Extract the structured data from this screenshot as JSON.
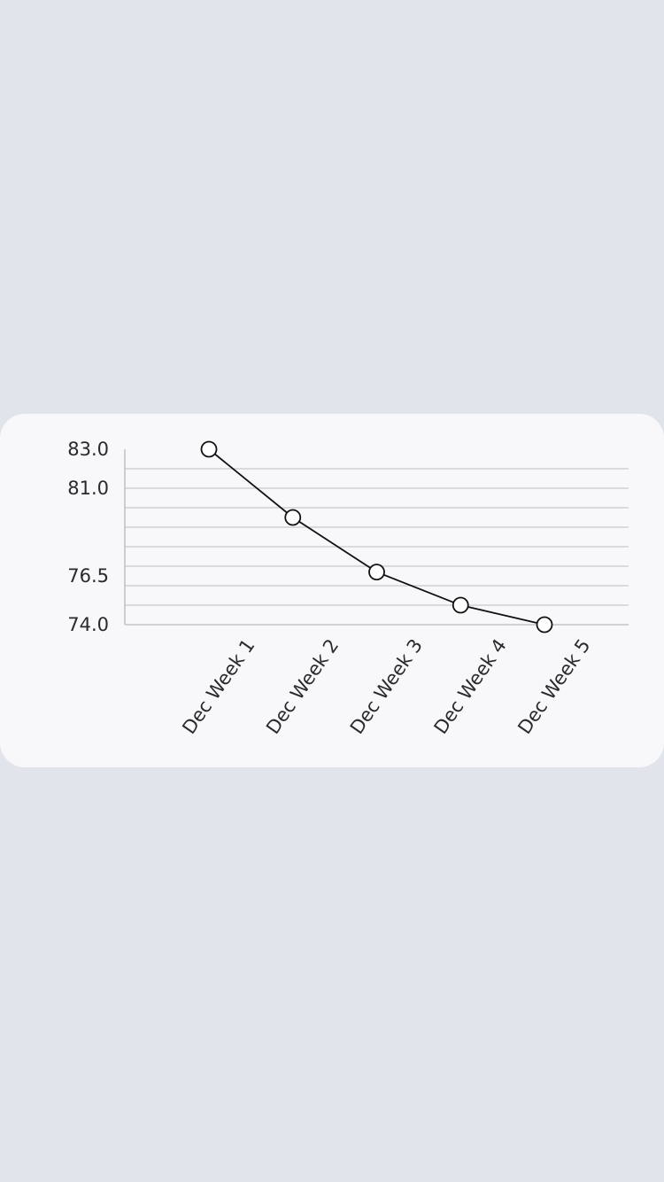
{
  "chart_data": {
    "type": "line",
    "categories": [
      "Dec Week 1",
      "Dec Week 2",
      "Dec Week 3",
      "Dec Week 4",
      "Dec Week 5"
    ],
    "series": [
      {
        "values": [
          83.0,
          79.5,
          76.7,
          75.0,
          74.0
        ]
      }
    ],
    "yticks": [
      "83.0",
      "81.0",
      "76.5",
      "74.0"
    ],
    "ylim": [
      74.0,
      83.0
    ],
    "grid": true,
    "colors": {
      "background": "#e2e4ec",
      "card": "#f8f8fa",
      "line": "#111111",
      "marker_fill": "#ffffff",
      "gridline": "#cfcfd3"
    }
  }
}
